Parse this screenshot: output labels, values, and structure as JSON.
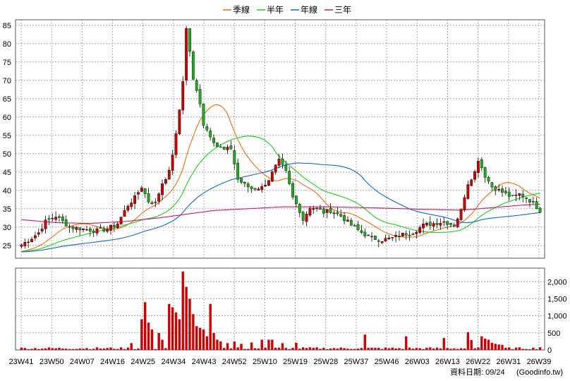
{
  "legend": [
    {
      "label": "季線",
      "color": "#e8701a"
    },
    {
      "label": "半年",
      "color": "#22cc22"
    },
    {
      "label": "年線",
      "color": "#1a66cc"
    },
    {
      "label": "三年",
      "color": "#cc1a66"
    }
  ],
  "footer": {
    "date_text": "資料日期: 09/24",
    "source_text": "(Goodinfo.tw)"
  },
  "colors": {
    "up": "#cc0000",
    "down": "#22aa22",
    "volume": "#cc0000",
    "grid": "#999999"
  },
  "chart_data": {
    "type": "candlestick",
    "title": "",
    "x_tick_labels": [
      "23W41",
      "23W50",
      "24W07",
      "24W16",
      "24W25",
      "24W34",
      "24W43",
      "24W52",
      "25W10",
      "25W19",
      "25W28",
      "25W37",
      "25W46",
      "26W03",
      "26W13",
      "26W22",
      "26W31",
      "26W39"
    ],
    "price_axis": {
      "ticks": [
        25,
        30,
        35,
        40,
        45,
        50,
        55,
        60,
        65,
        70,
        75,
        80,
        85
      ],
      "ylim": [
        21.5,
        86.5
      ]
    },
    "volume_axis": {
      "ticks": [
        0,
        500,
        1000,
        1500,
        2000
      ],
      "tick_labels": [
        "0",
        "500",
        "1,000",
        "1,500",
        "2,000"
      ],
      "ylim": [
        0,
        2400
      ]
    },
    "close_keyframes": [
      [
        0,
        25.2
      ],
      [
        3,
        27.0
      ],
      [
        5,
        28.5
      ],
      [
        7,
        31.5
      ],
      [
        10,
        33.0
      ],
      [
        14,
        30.0
      ],
      [
        18,
        29.5
      ],
      [
        22,
        29.0
      ],
      [
        25,
        29.5
      ],
      [
        28,
        31.0
      ],
      [
        31,
        36.0
      ],
      [
        33,
        38.0
      ],
      [
        35,
        41.0
      ],
      [
        37,
        37.0
      ],
      [
        39,
        36.5
      ],
      [
        41,
        42.0
      ],
      [
        43,
        45.0
      ],
      [
        45,
        55.0
      ],
      [
        46,
        62.0
      ],
      [
        47,
        70.0
      ],
      [
        48,
        84.0
      ],
      [
        49,
        78.0
      ],
      [
        50,
        70.0
      ],
      [
        52,
        64.0
      ],
      [
        53,
        58.0
      ],
      [
        55,
        55.0
      ],
      [
        57,
        52.0
      ],
      [
        59,
        51.0
      ],
      [
        61,
        51.5
      ],
      [
        63,
        43.0
      ],
      [
        65,
        41.5
      ],
      [
        67,
        40.5
      ],
      [
        70,
        40.8
      ],
      [
        72,
        43.0
      ],
      [
        74,
        46.5
      ],
      [
        75,
        48.0
      ],
      [
        77,
        45.0
      ],
      [
        79,
        38.0
      ],
      [
        81,
        34.5
      ],
      [
        82,
        32.0
      ],
      [
        84,
        35.5
      ],
      [
        86,
        35.0
      ],
      [
        88,
        34.0
      ],
      [
        90,
        34.5
      ],
      [
        93,
        33.0
      ],
      [
        96,
        30.5
      ],
      [
        99,
        28.5
      ],
      [
        102,
        27.0
      ],
      [
        105,
        26.5
      ],
      [
        108,
        27.0
      ],
      [
        111,
        28.0
      ],
      [
        114,
        28.5
      ],
      [
        117,
        30.5
      ],
      [
        120,
        31.0
      ],
      [
        123,
        31.5
      ],
      [
        126,
        30.5
      ],
      [
        128,
        34.5
      ],
      [
        129,
        38.5
      ],
      [
        130,
        42.0
      ],
      [
        132,
        45.0
      ],
      [
        133,
        48.5
      ],
      [
        135,
        44.0
      ],
      [
        137,
        41.0
      ],
      [
        139,
        40.0
      ],
      [
        141,
        39.0
      ],
      [
        143,
        38.0
      ],
      [
        145,
        39.0
      ],
      [
        147,
        38.0
      ],
      [
        149,
        36.5
      ],
      [
        150,
        35.5
      ],
      [
        151,
        34.5
      ]
    ],
    "volume_spikes": [
      [
        32,
        200
      ],
      [
        35,
        900
      ],
      [
        36,
        1400
      ],
      [
        37,
        800
      ],
      [
        38,
        600
      ],
      [
        40,
        500
      ],
      [
        41,
        300
      ],
      [
        43,
        1350
      ],
      [
        44,
        1250
      ],
      [
        45,
        1100
      ],
      [
        46,
        900
      ],
      [
        47,
        2300
      ],
      [
        48,
        1850
      ],
      [
        49,
        1500
      ],
      [
        50,
        1050
      ],
      [
        51,
        700
      ],
      [
        52,
        650
      ],
      [
        53,
        600
      ],
      [
        54,
        400
      ],
      [
        55,
        1350
      ],
      [
        56,
        500
      ],
      [
        57,
        300
      ],
      [
        58,
        250
      ],
      [
        60,
        200
      ],
      [
        62,
        250
      ],
      [
        64,
        180
      ],
      [
        67,
        220
      ],
      [
        70,
        300
      ],
      [
        72,
        300
      ],
      [
        73,
        300
      ],
      [
        76,
        200
      ],
      [
        80,
        210
      ],
      [
        100,
        450
      ],
      [
        112,
        400
      ],
      [
        123,
        350
      ],
      [
        130,
        520
      ],
      [
        131,
        290
      ],
      [
        134,
        400
      ],
      [
        135,
        330
      ],
      [
        136,
        300
      ],
      [
        137,
        210
      ],
      [
        138,
        180
      ],
      [
        139,
        160
      ],
      [
        140,
        150
      ],
      [
        151,
        80
      ]
    ],
    "moving_averages": [
      {
        "name": "季線",
        "color": "#e8701a",
        "window": 13
      },
      {
        "name": "半年",
        "color": "#22cc22",
        "window": 26
      },
      {
        "name": "年線",
        "color": "#1a66cc",
        "window": 52
      },
      {
        "name": "三年",
        "color": "#cc1a66",
        "window": 156
      }
    ],
    "three_year_keyframes": [
      [
        0,
        32.0
      ],
      [
        10,
        31.2
      ],
      [
        20,
        31.0
      ],
      [
        30,
        31.5
      ],
      [
        40,
        32.5
      ],
      [
        48,
        33.5
      ],
      [
        56,
        34.5
      ],
      [
        66,
        35.0
      ],
      [
        76,
        35.5
      ],
      [
        90,
        35.5
      ],
      [
        104,
        35.2
      ],
      [
        118,
        34.8
      ],
      [
        128,
        34.6
      ],
      [
        136,
        35.2
      ],
      [
        146,
        36.0
      ],
      [
        151,
        36.2
      ]
    ],
    "num_weeks": 152
  }
}
